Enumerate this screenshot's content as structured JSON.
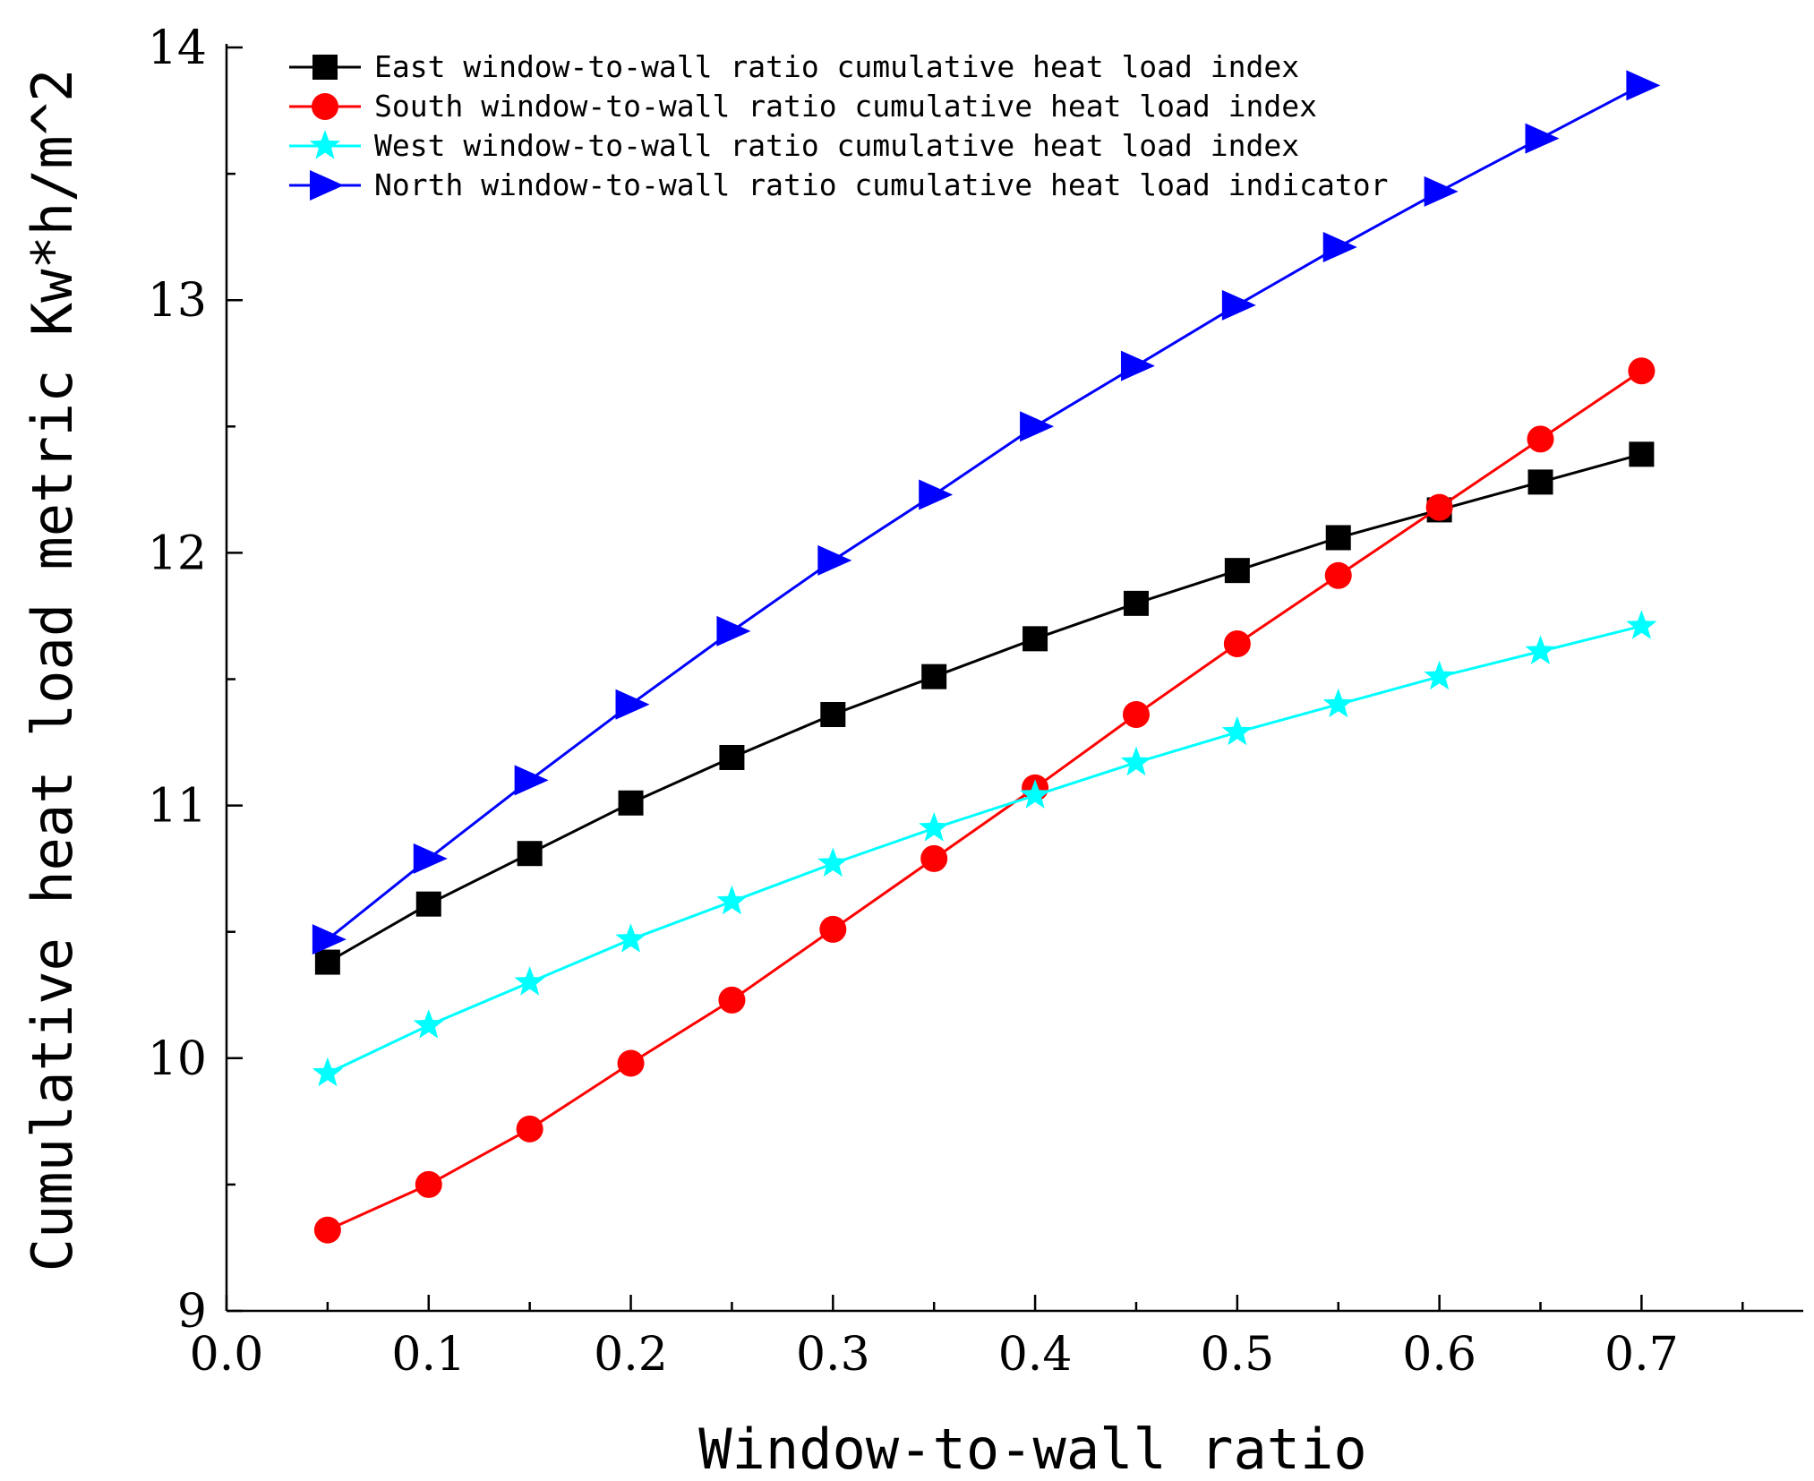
{
  "chart_data": {
    "type": "line",
    "xlabel": "Window-to-wall ratio",
    "ylabel": "Cumulative heat load metric Kw*h/m^2",
    "xlim": [
      0.0,
      0.78
    ],
    "ylim": [
      9,
      14
    ],
    "xticks": [
      0.0,
      0.1,
      0.2,
      0.3,
      0.4,
      0.5,
      0.6,
      0.7
    ],
    "xtick_labels": [
      "0.0",
      "0.1",
      "0.2",
      "0.3",
      "0.4",
      "0.5",
      "0.6",
      "0.7"
    ],
    "yticks": [
      9,
      10,
      11,
      12,
      13,
      14
    ],
    "ytick_labels": [
      "9",
      "10",
      "11",
      "12",
      "13",
      "14"
    ],
    "yminor_ticks": [
      9.5,
      10.5,
      11.5,
      12.5,
      13.5
    ],
    "legend_position": "top-left",
    "x": [
      0.05,
      0.1,
      0.15,
      0.2,
      0.25,
      0.3,
      0.35,
      0.4,
      0.45,
      0.5,
      0.55,
      0.6,
      0.65,
      0.7
    ],
    "series": [
      {
        "name": "East window-to-wall ratio cumulative heat load index",
        "color": "#000000",
        "marker": "square",
        "values": [
          10.38,
          10.61,
          10.81,
          11.01,
          11.19,
          11.36,
          11.51,
          11.66,
          11.8,
          11.93,
          12.06,
          12.17,
          12.28,
          12.39
        ]
      },
      {
        "name": "South window-to-wall ratio cumulative heat load index",
        "color": "#ff0000",
        "marker": "circle",
        "values": [
          9.32,
          9.5,
          9.72,
          9.98,
          10.23,
          10.51,
          10.79,
          11.07,
          11.36,
          11.64,
          11.91,
          12.18,
          12.45,
          12.72
        ]
      },
      {
        "name": "West window-to-wall ratio cumulative heat load index",
        "color": "#00ffff",
        "marker": "star",
        "values": [
          9.94,
          10.13,
          10.3,
          10.47,
          10.62,
          10.77,
          10.91,
          11.04,
          11.17,
          11.29,
          11.4,
          11.51,
          11.61,
          11.71
        ]
      },
      {
        "name": "North window-to-wall ratio cumulative heat load indicator",
        "color": "#0000ff",
        "marker": "triangle-right",
        "values": [
          10.47,
          10.79,
          11.1,
          11.4,
          11.69,
          11.97,
          12.23,
          12.5,
          12.74,
          12.98,
          13.21,
          13.43,
          13.64,
          13.85
        ]
      }
    ]
  }
}
